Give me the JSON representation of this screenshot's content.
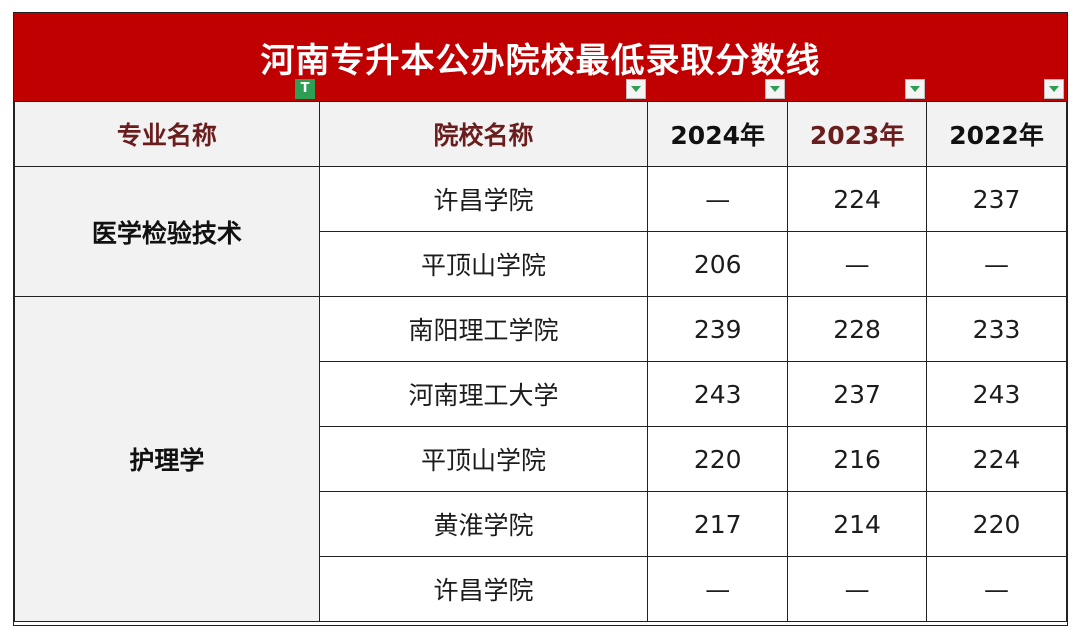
{
  "title": "河南专升本公办院校最低录取分数线",
  "headers": [
    "专业名称",
    "院校名称",
    "2024年",
    "2023年",
    "2022年"
  ],
  "groups": [
    {
      "major": "医学检验技术",
      "rows": [
        {
          "school": "许昌学院",
          "y2024": "—",
          "y2023": "224",
          "y2022": "237"
        },
        {
          "school": "平顶山学院",
          "y2024": "206",
          "y2023": "—",
          "y2022": "—"
        }
      ]
    },
    {
      "major": "护理学",
      "rows": [
        {
          "school": "南阳理工学院",
          "y2024": "239",
          "y2023": "228",
          "y2022": "233"
        },
        {
          "school": "河南理工大学",
          "y2024": "243",
          "y2023": "237",
          "y2022": "243"
        },
        {
          "school": "平顶山学院",
          "y2024": "220",
          "y2023": "216",
          "y2022": "224"
        },
        {
          "school": "黄淮学院",
          "y2024": "217",
          "y2023": "214",
          "y2022": "220"
        },
        {
          "school": "许昌学院",
          "y2024": "—",
          "y2023": "—",
          "y2022": "—"
        }
      ]
    }
  ],
  "filter_active_label": "T",
  "colors": {
    "title_bg": "#c00000",
    "header_text": "#6a1d1d",
    "filter_green": "#2e9e55"
  }
}
